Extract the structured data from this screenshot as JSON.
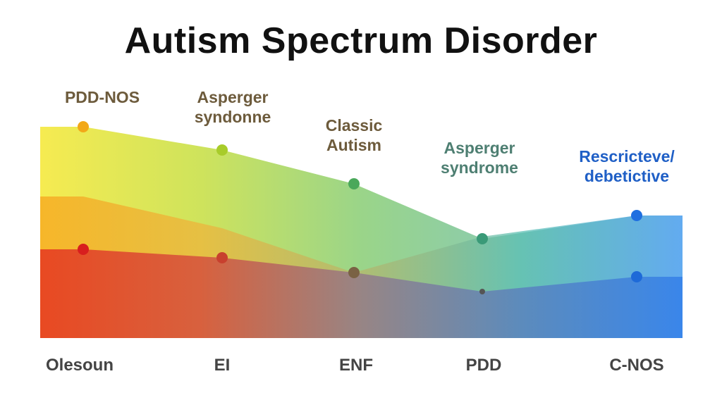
{
  "chart_data": {
    "type": "area",
    "title": "Autism Spectrum Disorder",
    "categories": [
      "Olesoun",
      "EI",
      "ENF",
      "PDD",
      "C-NOS"
    ],
    "xlabel": "",
    "ylabel": "",
    "ylim": [
      0,
      100
    ],
    "grid": false,
    "legend": "none",
    "series": [
      {
        "values": [
          100,
          89,
          73,
          47,
          58
        ],
        "color": "#f2e23a",
        "stops": [
          "#f5e93e",
          "#c9e04a",
          "#8fd07c",
          "#7cc4ab",
          "#6aaaf0"
        ]
      },
      {
        "values": [
          67,
          52,
          31,
          48,
          58
        ],
        "color": "#f6a623",
        "stops": [
          "#f7a21b",
          "#efb23a",
          "#b7b56a",
          "#58bfb3",
          "#5aa8f0"
        ]
      },
      {
        "values": [
          42,
          38,
          31,
          22,
          29
        ],
        "color": "#e02424",
        "stops": [
          "#e31f1f",
          "#d23c3c",
          "#8e6f8c",
          "#5876c0",
          "#2a78e8"
        ]
      }
    ],
    "annotations": [
      {
        "text": "PDD-NOS",
        "color": "#6d5b3c",
        "category": 0
      },
      {
        "text": "Asperger\nsyndonne",
        "color": "#6d5b3c",
        "category": 1
      },
      {
        "text": "Classic\nAutism",
        "color": "#6d5b3c",
        "category": 2
      },
      {
        "text": "Asperger\nsyndrome",
        "color": "#4e7f72",
        "category": 3
      },
      {
        "text": "Rescricteve/\ndebetictive",
        "color": "#1f5fc6",
        "category": 4
      }
    ],
    "markers": [
      {
        "series": 0,
        "category": 0,
        "color": "#f2a818"
      },
      {
        "series": 0,
        "category": 1,
        "color": "#a8cc2a"
      },
      {
        "series": 0,
        "category": 2,
        "color": "#4aa85a"
      },
      {
        "series": 0,
        "category": 3,
        "color": "#3a9a78"
      },
      {
        "series": 0,
        "category": 4,
        "color": "#1f6fe0"
      },
      {
        "series": 2,
        "category": 0,
        "color": "#d81e1e"
      },
      {
        "series": 2,
        "category": 1,
        "color": "#c8402e"
      },
      {
        "series": 2,
        "category": 2,
        "color": "#7a6244"
      },
      {
        "series": 2,
        "category": 3,
        "color": "#555555"
      },
      {
        "series": 2,
        "category": 4,
        "color": "#1e6ad8"
      }
    ]
  }
}
